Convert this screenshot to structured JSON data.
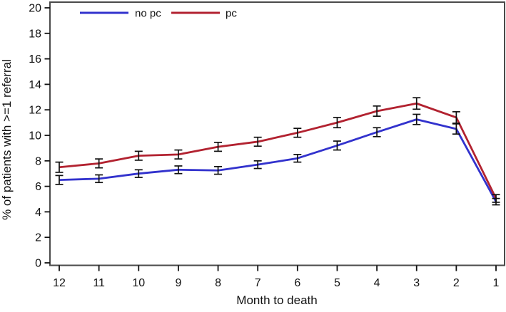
{
  "figure": {
    "background": "#ffffff"
  },
  "legend": {
    "items": [
      {
        "label": "no pc",
        "color": "#3232cd"
      },
      {
        "label": "pc",
        "color": "#b22230"
      }
    ]
  },
  "colors": {
    "no_pc_line": "#3232cd",
    "pc_line": "#b22230",
    "plot_frame": "#4a4a4a",
    "ticks_and_text": "#111111",
    "error_bars": "#111111"
  },
  "chart_data": {
    "type": "line",
    "title": "",
    "xlabel": "Month to death",
    "ylabel": "% of patients with >=1 referral",
    "x": [
      12,
      11,
      10,
      9,
      8,
      7,
      6,
      5,
      4,
      3,
      2,
      1
    ],
    "x_axis_reversed": true,
    "ylim": [
      0,
      20
    ],
    "yticks": [
      0,
      2,
      4,
      6,
      8,
      10,
      12,
      14,
      16,
      18,
      20
    ],
    "grid": false,
    "error_bars": true,
    "legend_position": "top-left-inside",
    "series": [
      {
        "name": "no pc",
        "color": "#3232cd",
        "values": [
          6.5,
          6.6,
          7.0,
          7.3,
          7.25,
          7.7,
          8.2,
          9.2,
          10.25,
          11.25,
          10.5,
          4.8
        ],
        "errors": [
          0.35,
          0.3,
          0.3,
          0.3,
          0.3,
          0.3,
          0.3,
          0.35,
          0.35,
          0.4,
          0.4,
          0.25
        ]
      },
      {
        "name": "pc",
        "color": "#b22230",
        "values": [
          7.5,
          7.8,
          8.4,
          8.5,
          9.1,
          9.5,
          10.2,
          11.0,
          11.9,
          12.5,
          11.4,
          5.05
        ],
        "errors": [
          0.4,
          0.35,
          0.35,
          0.35,
          0.35,
          0.35,
          0.35,
          0.4,
          0.4,
          0.45,
          0.45,
          0.3
        ]
      }
    ]
  }
}
